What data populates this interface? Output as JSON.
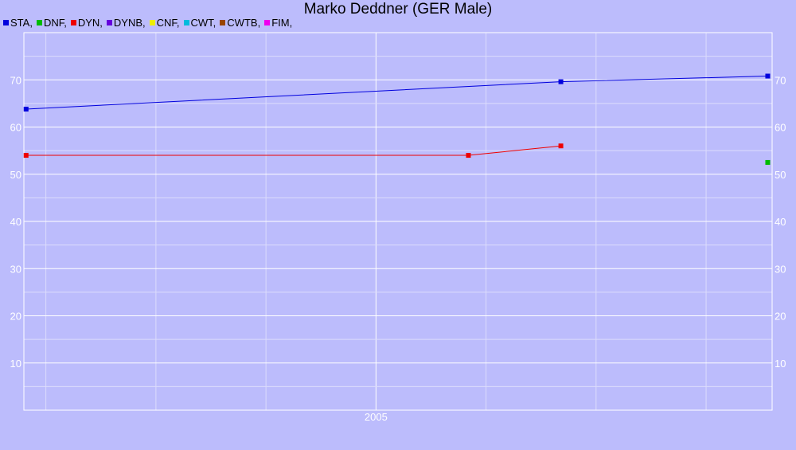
{
  "chart_data": {
    "type": "line",
    "title": "Marko Deddner (GER Male)",
    "xlabel": "",
    "ylabel": "",
    "x_tick_labels": [
      {
        "label": "2005",
        "x": 2005.0
      }
    ],
    "xlim": [
      2003.4,
      2006.8
    ],
    "ylim": [
      0,
      80
    ],
    "y_ticks": [
      10,
      20,
      30,
      40,
      50,
      60,
      70
    ],
    "grid": true,
    "legend_position": "top-left",
    "legend": [
      {
        "name": "STA,",
        "color": "#0000dd"
      },
      {
        "name": "DNF,",
        "color": "#00bb00"
      },
      {
        "name": "DYN,",
        "color": "#ee0000"
      },
      {
        "name": "DYNB,",
        "color": "#6600dd"
      },
      {
        "name": "CNF,",
        "color": "#eeee00"
      },
      {
        "name": "CWT,",
        "color": "#00bbdd"
      },
      {
        "name": "CWTB,",
        "color": "#994400"
      },
      {
        "name": "FIM,",
        "color": "#ee00ee"
      }
    ],
    "series": [
      {
        "name": "STA,",
        "color": "#0000dd",
        "points": [
          [
            2003.41,
            63.8
          ],
          [
            2005.84,
            69.6
          ],
          [
            2006.78,
            70.8
          ]
        ]
      },
      {
        "name": "DNF,",
        "color": "#00bb00",
        "points": [
          [
            2006.78,
            52.5
          ]
        ]
      },
      {
        "name": "DYN,",
        "color": "#ee0000",
        "points": [
          [
            2003.41,
            54.0
          ],
          [
            2005.42,
            54.0
          ],
          [
            2005.84,
            56.0
          ]
        ]
      }
    ]
  }
}
